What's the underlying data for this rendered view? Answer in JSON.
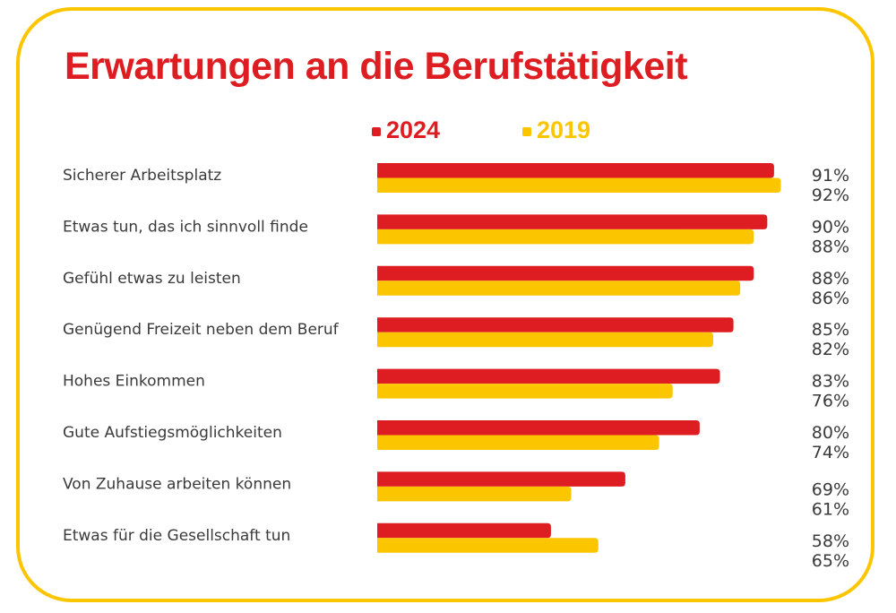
{
  "colors": {
    "series_2024": "#dd1d21",
    "series_2019": "#fbc600",
    "frame": "#fbc600",
    "text": "#3a3a3a"
  },
  "chart_data": {
    "type": "bar",
    "orientation": "horizontal",
    "title": "Erwartungen an die Berufstätigkeit",
    "legend_placement": "top",
    "grid": false,
    "categories": [
      "Sicherer Arbeitsplatz",
      "Etwas tun, das ich sinnvoll finde",
      "Gefühl etwas zu leisten",
      "Genügend Freizeit neben dem Beruf",
      "Hohes Einkommen",
      "Gute Aufstiegsmöglichkeiten",
      "Von Zuhause arbeiten können",
      "Etwas für die Gesellschaft tun"
    ],
    "series": [
      {
        "name": "2024",
        "values": [
          91,
          90,
          88,
          85,
          83,
          80,
          69,
          58
        ]
      },
      {
        "name": "2019",
        "values": [
          92,
          88,
          86,
          82,
          76,
          74,
          61,
          65
        ]
      }
    ],
    "unit": "%"
  }
}
